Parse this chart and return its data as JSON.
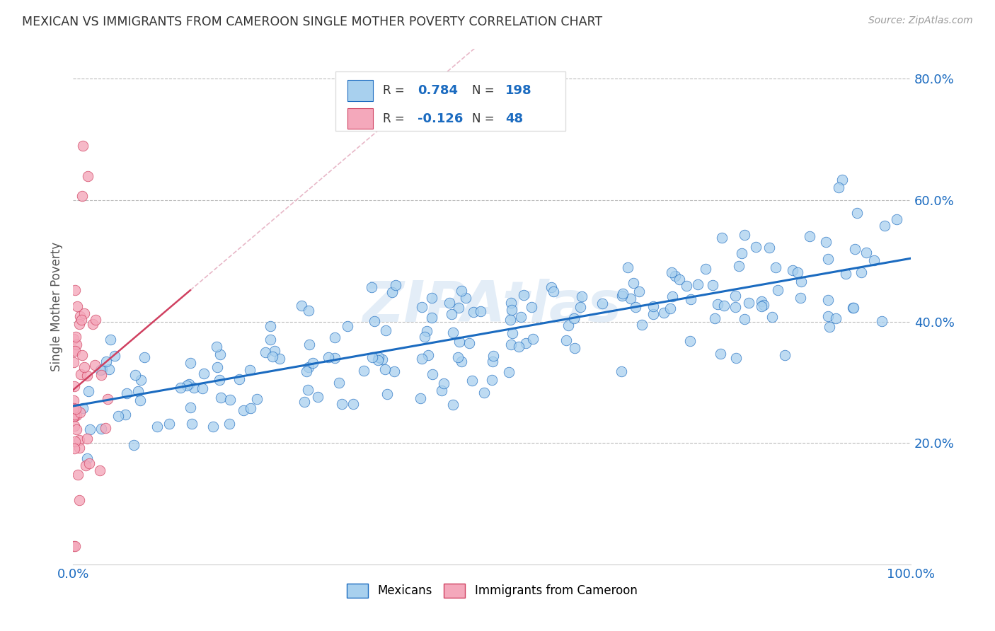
{
  "title": "MEXICAN VS IMMIGRANTS FROM CAMEROON SINGLE MOTHER POVERTY CORRELATION CHART",
  "source": "Source: ZipAtlas.com",
  "ylabel": "Single Mother Poverty",
  "xlim": [
    0,
    1
  ],
  "ylim": [
    0,
    0.85
  ],
  "yticks": [
    0.2,
    0.4,
    0.6,
    0.8
  ],
  "ytick_labels": [
    "20.0%",
    "40.0%",
    "60.0%",
    "80.0%"
  ],
  "xticks": [
    0.0,
    0.1,
    0.2,
    0.3,
    0.4,
    0.5,
    0.6,
    0.7,
    0.8,
    0.9,
    1.0
  ],
  "xtick_labels": [
    "0.0%",
    "",
    "",
    "",
    "",
    "",
    "",
    "",
    "",
    "",
    "100.0%"
  ],
  "blue_R": 0.784,
  "blue_N": 198,
  "pink_R": -0.126,
  "pink_N": 48,
  "blue_color": "#A8D0EE",
  "pink_color": "#F4A8BB",
  "blue_line_color": "#1B6BC0",
  "pink_line_color": "#D04060",
  "pink_dash_color": "#E8B8C8",
  "watermark": "ZIPAtlas",
  "legend_label_blue": "Mexicans",
  "legend_label_pink": "Immigrants from Cameroon",
  "background_color": "#ffffff",
  "grid_color": "#bbbbbb",
  "title_color": "#333333",
  "axis_label_color": "#555555",
  "tick_label_color": "#1B6BC0",
  "blue_scatter_seed": 7,
  "pink_scatter_seed": 13
}
